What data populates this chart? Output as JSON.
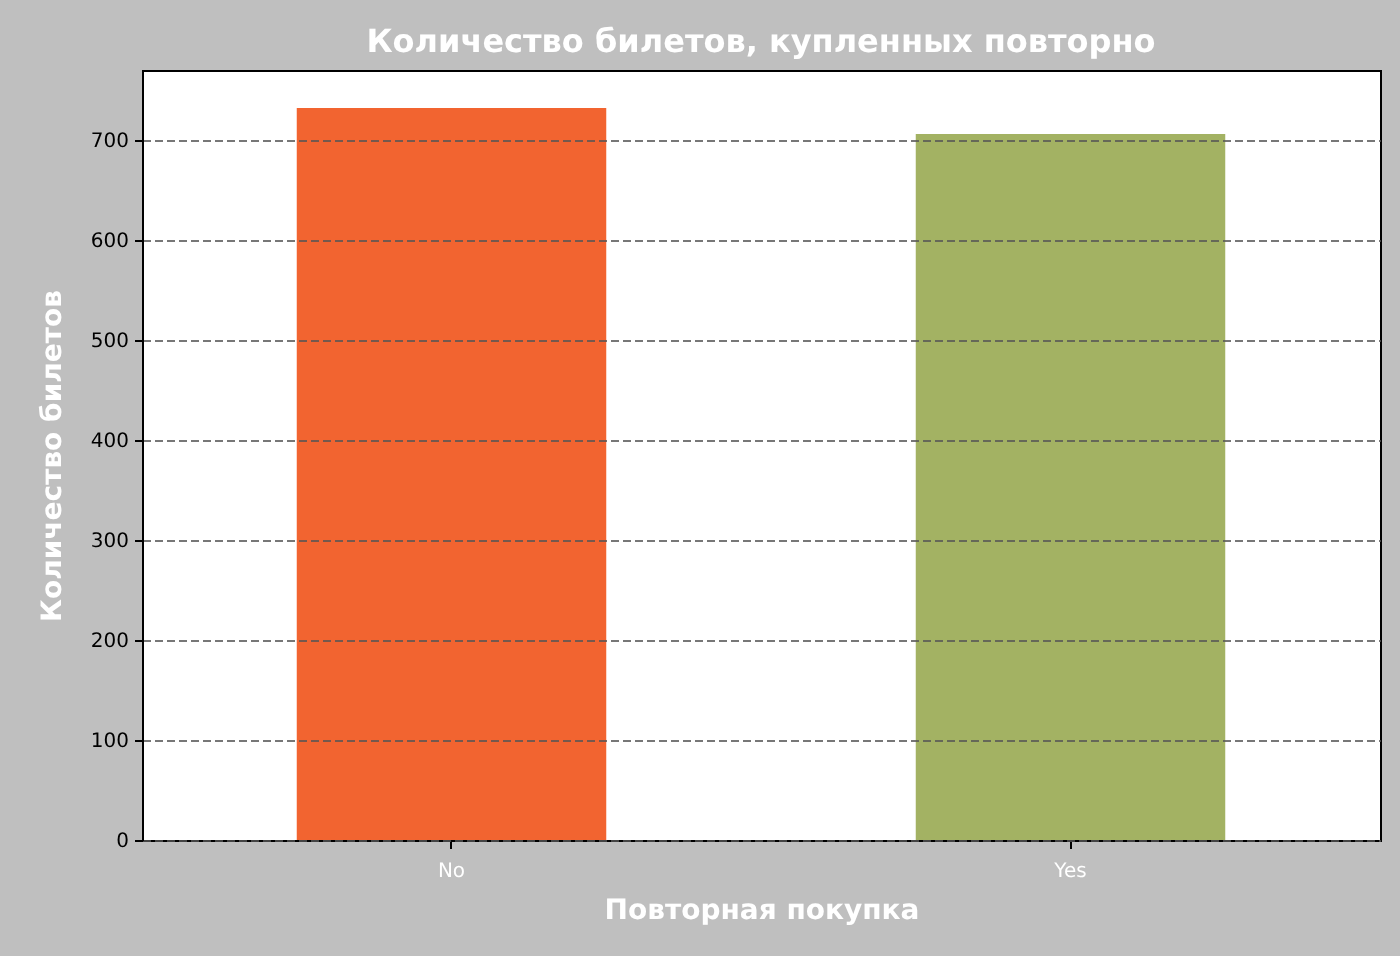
{
  "chart_data": {
    "type": "bar",
    "title": "Количество билетов, купленных повторно",
    "xlabel": "Повторная покупка",
    "ylabel": "Количество билетов",
    "categories": [
      "No",
      "Yes"
    ],
    "values": [
      732,
      706
    ],
    "colors": [
      "#f26430",
      "#a3b263"
    ],
    "ylim": [
      0,
      770
    ],
    "yticks": [
      0,
      100,
      200,
      300,
      400,
      500,
      600,
      700
    ],
    "grid": "y"
  }
}
